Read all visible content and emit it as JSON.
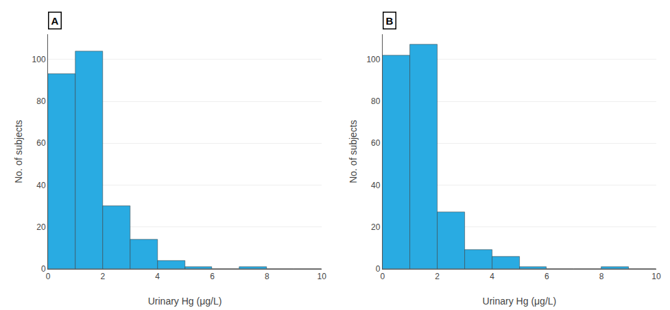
{
  "chart_data": [
    {
      "type": "histogram",
      "title": "A",
      "bins": [
        0,
        1,
        2,
        3,
        4,
        5,
        6,
        7,
        8,
        9,
        10
      ],
      "values": [
        93,
        104,
        30,
        14,
        4,
        1,
        0,
        1,
        0,
        0
      ],
      "color": "#29ABE2",
      "xlabel": "Urinary Hg (μg/L)",
      "ylabel": "No. of subjects",
      "xlim": [
        0,
        10
      ],
      "ylim": [
        0,
        112
      ],
      "xticks": [
        0,
        2,
        4,
        6,
        8,
        10
      ],
      "yticks": [
        0,
        20,
        40,
        60,
        80,
        100
      ],
      "grid": true
    },
    {
      "type": "histogram",
      "title": "B",
      "bins": [
        0,
        1,
        2,
        3,
        4,
        5,
        6,
        7,
        8,
        9,
        10
      ],
      "values": [
        102,
        107,
        27,
        9,
        6,
        1,
        0,
        0,
        1,
        0
      ],
      "color": "#29ABE2",
      "xlabel": "Urinary Hg (μg/L)",
      "ylabel": "No. of subjects",
      "xlim": [
        0,
        10
      ],
      "ylim": [
        0,
        112
      ],
      "xticks": [
        0,
        2,
        4,
        6,
        8,
        10
      ],
      "yticks": [
        0,
        20,
        40,
        60,
        80,
        100
      ],
      "grid": true
    }
  ]
}
